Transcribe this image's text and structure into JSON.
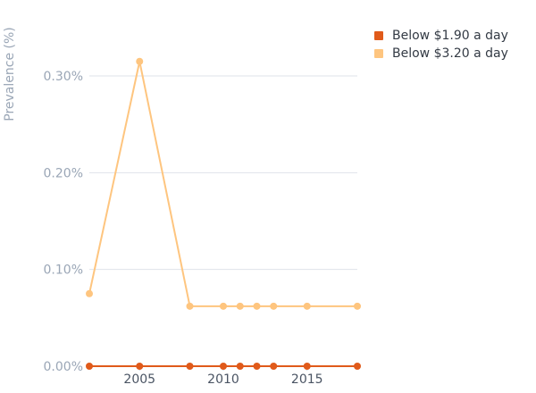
{
  "chart_data": {
    "type": "line",
    "title": "",
    "xlabel": "",
    "ylabel": "Prevalence (%)",
    "xlim": [
      2002,
      2018
    ],
    "ylim": [
      0,
      0.35
    ],
    "x_ticks": [
      2005,
      2010,
      2015
    ],
    "y_ticks": [
      0,
      0.1,
      0.2,
      0.3
    ],
    "y_tick_labels": [
      "0.00%",
      "0.10%",
      "0.20%",
      "0.30%"
    ],
    "grid": "horizontal",
    "legend_position": "top-right",
    "series": [
      {
        "name": "Below $1.90 a day",
        "color": "#e05a1a",
        "x": [
          2002,
          2005,
          2008,
          2010,
          2011,
          2012,
          2013,
          2015,
          2018
        ],
        "y": [
          0,
          0,
          0,
          0,
          0,
          0,
          0,
          0,
          0
        ]
      },
      {
        "name": "Below $3.20 a day",
        "color": "#fec57f",
        "x": [
          2002,
          2005,
          2008,
          2010,
          2011,
          2012,
          2013,
          2015,
          2018
        ],
        "y": [
          0.075,
          0.315,
          0.062,
          0.062,
          0.062,
          0.062,
          0.062,
          0.062,
          0.062
        ]
      }
    ]
  }
}
